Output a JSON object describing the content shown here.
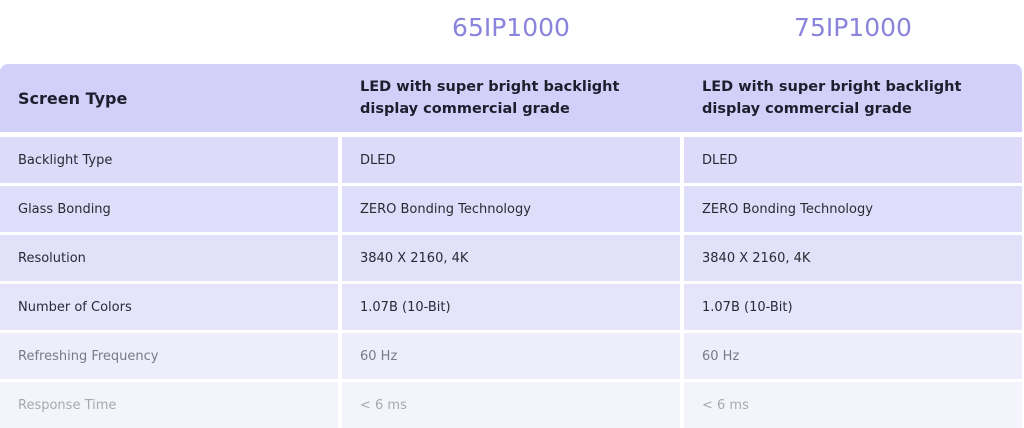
{
  "header": {
    "models": [
      "65IP1000",
      "75IP1000"
    ]
  },
  "table": {
    "header": [
      "Screen Type",
      "LED with super bright backlight display commercial grade",
      "LED with super bright backlight display commercial grade"
    ],
    "rows": [
      [
        "Backlight Type",
        "DLED",
        "DLED"
      ],
      [
        "Glass Bonding",
        "ZERO Bonding Technology",
        "ZERO Bonding Technology"
      ],
      [
        "Resolution",
        "3840 X 2160, 4K",
        "3840 X 2160, 4K"
      ],
      [
        "Number of Colors",
        "1.07B (10-Bit)",
        "1.07B (10-Bit)"
      ],
      [
        "Refreshing Frequency",
        "60 Hz",
        "60 Hz"
      ],
      [
        "Response Time",
        "< 6 ms",
        "< 6 ms"
      ]
    ]
  }
}
